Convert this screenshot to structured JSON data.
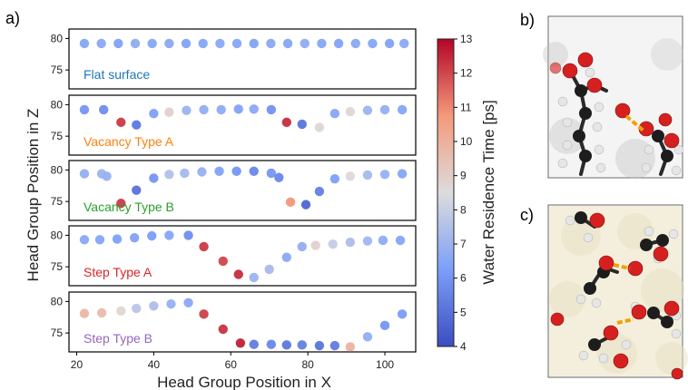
{
  "panel_labels": {
    "a": "a)",
    "b": "b)",
    "c": "c)"
  },
  "colors": {
    "low": "#3a4a9c",
    "mid": "#dddddd",
    "high": "#b0283a",
    "h_bond": "#f2a100"
  },
  "chart_data": {
    "type": "scatter",
    "xlabel": "Head Group Position in X",
    "ylabel": "Head Group Position in Z",
    "xlim": [
      18,
      108
    ],
    "x_ticks": [
      "20",
      "40",
      "60",
      "80",
      "100"
    ],
    "y_ticks": [
      "80",
      "75"
    ],
    "ylim": [
      72,
      81.5
    ],
    "colorbar": {
      "label": "Water Residence Time [ps]",
      "min": 4,
      "max": 13,
      "ticks": [
        "4",
        "5",
        "6",
        "7",
        "8",
        "9",
        "10",
        "11",
        "12",
        "13"
      ],
      "colormap": "coolwarm"
    },
    "panels": [
      {
        "label": "Flat surface",
        "label_color": "#1f77b4",
        "points": [
          {
            "x": 22.0,
            "y": 79.2,
            "t": 6.5
          },
          {
            "x": 26.4,
            "y": 79.2,
            "t": 6.6
          },
          {
            "x": 30.8,
            "y": 79.2,
            "t": 6.4
          },
          {
            "x": 35.2,
            "y": 79.2,
            "t": 6.7
          },
          {
            "x": 39.6,
            "y": 79.2,
            "t": 6.5
          },
          {
            "x": 44.0,
            "y": 79.2,
            "t": 6.6
          },
          {
            "x": 48.4,
            "y": 79.2,
            "t": 6.4
          },
          {
            "x": 52.8,
            "y": 79.2,
            "t": 6.5
          },
          {
            "x": 57.2,
            "y": 79.2,
            "t": 6.6
          },
          {
            "x": 61.6,
            "y": 79.2,
            "t": 6.5
          },
          {
            "x": 66.0,
            "y": 79.2,
            "t": 6.4
          },
          {
            "x": 70.4,
            "y": 79.2,
            "t": 6.6
          },
          {
            "x": 74.8,
            "y": 79.2,
            "t": 6.5
          },
          {
            "x": 79.2,
            "y": 79.2,
            "t": 6.7
          },
          {
            "x": 83.6,
            "y": 79.2,
            "t": 6.5
          },
          {
            "x": 88.0,
            "y": 79.2,
            "t": 6.4
          },
          {
            "x": 92.4,
            "y": 79.2,
            "t": 6.6
          },
          {
            "x": 96.8,
            "y": 79.2,
            "t": 6.5
          },
          {
            "x": 101.2,
            "y": 79.2,
            "t": 6.4
          },
          {
            "x": 105.0,
            "y": 79.2,
            "t": 6.6
          }
        ]
      },
      {
        "label": "Vacancy Type A",
        "label_color": "#ff7f0e",
        "points": [
          {
            "x": 22.0,
            "y": 79.2,
            "t": 6.0
          },
          {
            "x": 27.0,
            "y": 79.2,
            "t": 5.8
          },
          {
            "x": 31.5,
            "y": 77.2,
            "t": 12.2
          },
          {
            "x": 35.5,
            "y": 76.8,
            "t": 5.2
          },
          {
            "x": 40.0,
            "y": 78.6,
            "t": 6.3
          },
          {
            "x": 44.0,
            "y": 78.8,
            "t": 8.9
          },
          {
            "x": 48.5,
            "y": 79.1,
            "t": 7.0
          },
          {
            "x": 53.0,
            "y": 79.2,
            "t": 6.8
          },
          {
            "x": 57.5,
            "y": 79.2,
            "t": 6.7
          },
          {
            "x": 62.0,
            "y": 79.3,
            "t": 6.4
          },
          {
            "x": 66.0,
            "y": 79.3,
            "t": 6.6
          },
          {
            "x": 70.5,
            "y": 79.2,
            "t": 5.9
          },
          {
            "x": 74.5,
            "y": 77.2,
            "t": 12.4
          },
          {
            "x": 78.5,
            "y": 76.9,
            "t": 5.1
          },
          {
            "x": 83.0,
            "y": 76.4,
            "t": 8.7
          },
          {
            "x": 87.0,
            "y": 78.6,
            "t": 6.5
          },
          {
            "x": 91.0,
            "y": 78.9,
            "t": 8.7
          },
          {
            "x": 95.5,
            "y": 79.1,
            "t": 7.0
          },
          {
            "x": 100.0,
            "y": 79.2,
            "t": 6.8
          },
          {
            "x": 104.5,
            "y": 79.2,
            "t": 6.5
          }
        ]
      },
      {
        "label": "Vacancy Type B",
        "label_color": "#2ca02c",
        "points": [
          {
            "x": 22.0,
            "y": 79.4,
            "t": 6.8
          },
          {
            "x": 26.5,
            "y": 79.4,
            "t": 7.0
          },
          {
            "x": 27.8,
            "y": 79.0,
            "t": 6.9
          },
          {
            "x": 31.5,
            "y": 74.7,
            "t": 12.2
          },
          {
            "x": 35.5,
            "y": 76.8,
            "t": 5.0
          },
          {
            "x": 40.0,
            "y": 78.7,
            "t": 6.0
          },
          {
            "x": 44.0,
            "y": 79.3,
            "t": 7.5
          },
          {
            "x": 48.0,
            "y": 79.5,
            "t": 7.2
          },
          {
            "x": 52.5,
            "y": 79.7,
            "t": 6.9
          },
          {
            "x": 57.0,
            "y": 79.8,
            "t": 6.4
          },
          {
            "x": 61.5,
            "y": 79.8,
            "t": 6.0
          },
          {
            "x": 66.0,
            "y": 79.8,
            "t": 5.6
          },
          {
            "x": 70.5,
            "y": 79.5,
            "t": 6.0
          },
          {
            "x": 72.5,
            "y": 78.8,
            "t": 5.6
          },
          {
            "x": 75.5,
            "y": 74.9,
            "t": 10.8
          },
          {
            "x": 79.5,
            "y": 74.5,
            "t": 4.7
          },
          {
            "x": 83.0,
            "y": 76.6,
            "t": 5.4
          },
          {
            "x": 87.0,
            "y": 78.6,
            "t": 6.3
          },
          {
            "x": 91.0,
            "y": 79.0,
            "t": 8.6
          },
          {
            "x": 95.5,
            "y": 79.2,
            "t": 7.2
          },
          {
            "x": 100.0,
            "y": 79.3,
            "t": 6.9
          },
          {
            "x": 104.5,
            "y": 79.4,
            "t": 6.5
          }
        ]
      },
      {
        "label": "Step Type A",
        "label_color": "#d62728",
        "points": [
          {
            "x": 22.0,
            "y": 79.3,
            "t": 6.6
          },
          {
            "x": 26.0,
            "y": 79.3,
            "t": 6.5
          },
          {
            "x": 30.5,
            "y": 79.4,
            "t": 6.3
          },
          {
            "x": 35.0,
            "y": 79.6,
            "t": 6.4
          },
          {
            "x": 39.5,
            "y": 79.9,
            "t": 6.2
          },
          {
            "x": 44.0,
            "y": 80.0,
            "t": 6.5
          },
          {
            "x": 49.0,
            "y": 80.0,
            "t": 5.8
          },
          {
            "x": 53.0,
            "y": 78.2,
            "t": 12.2
          },
          {
            "x": 58.0,
            "y": 75.9,
            "t": 12.0
          },
          {
            "x": 62.0,
            "y": 73.8,
            "t": 12.4
          },
          {
            "x": 66.0,
            "y": 73.3,
            "t": 7.0
          },
          {
            "x": 70.0,
            "y": 74.6,
            "t": 7.3
          },
          {
            "x": 74.5,
            "y": 76.5,
            "t": 6.6
          },
          {
            "x": 78.5,
            "y": 78.2,
            "t": 6.8
          },
          {
            "x": 82.0,
            "y": 78.4,
            "t": 8.9
          },
          {
            "x": 86.5,
            "y": 78.6,
            "t": 7.9
          },
          {
            "x": 91.0,
            "y": 78.9,
            "t": 7.4
          },
          {
            "x": 95.5,
            "y": 79.1,
            "t": 7.1
          },
          {
            "x": 99.5,
            "y": 79.2,
            "t": 6.7
          },
          {
            "x": 104.0,
            "y": 79.2,
            "t": 6.5
          }
        ]
      },
      {
        "label": "Step Type B",
        "label_color": "#9467bd",
        "points": [
          {
            "x": 22.0,
            "y": 78.1,
            "t": 9.8
          },
          {
            "x": 26.5,
            "y": 78.2,
            "t": 9.6
          },
          {
            "x": 31.5,
            "y": 78.5,
            "t": 8.7
          },
          {
            "x": 35.5,
            "y": 78.9,
            "t": 7.7
          },
          {
            "x": 40.0,
            "y": 79.3,
            "t": 7.4
          },
          {
            "x": 44.5,
            "y": 79.6,
            "t": 6.9
          },
          {
            "x": 49.0,
            "y": 79.8,
            "t": 6.6
          },
          {
            "x": 53.0,
            "y": 78.0,
            "t": 12.1
          },
          {
            "x": 58.0,
            "y": 75.6,
            "t": 12.3
          },
          {
            "x": 62.5,
            "y": 73.4,
            "t": 12.6
          },
          {
            "x": 66.0,
            "y": 73.2,
            "t": 5.3
          },
          {
            "x": 70.5,
            "y": 73.2,
            "t": 5.6
          },
          {
            "x": 74.5,
            "y": 73.1,
            "t": 5.2
          },
          {
            "x": 78.5,
            "y": 73.1,
            "t": 5.4
          },
          {
            "x": 83.0,
            "y": 73.0,
            "t": 5.1
          },
          {
            "x": 87.0,
            "y": 73.0,
            "t": 5.3
          },
          {
            "x": 91.0,
            "y": 72.8,
            "t": 9.9
          },
          {
            "x": 95.5,
            "y": 74.4,
            "t": 6.8
          },
          {
            "x": 100.0,
            "y": 76.2,
            "t": 6.0
          },
          {
            "x": 104.5,
            "y": 78.0,
            "t": 6.2
          }
        ]
      }
    ]
  }
}
